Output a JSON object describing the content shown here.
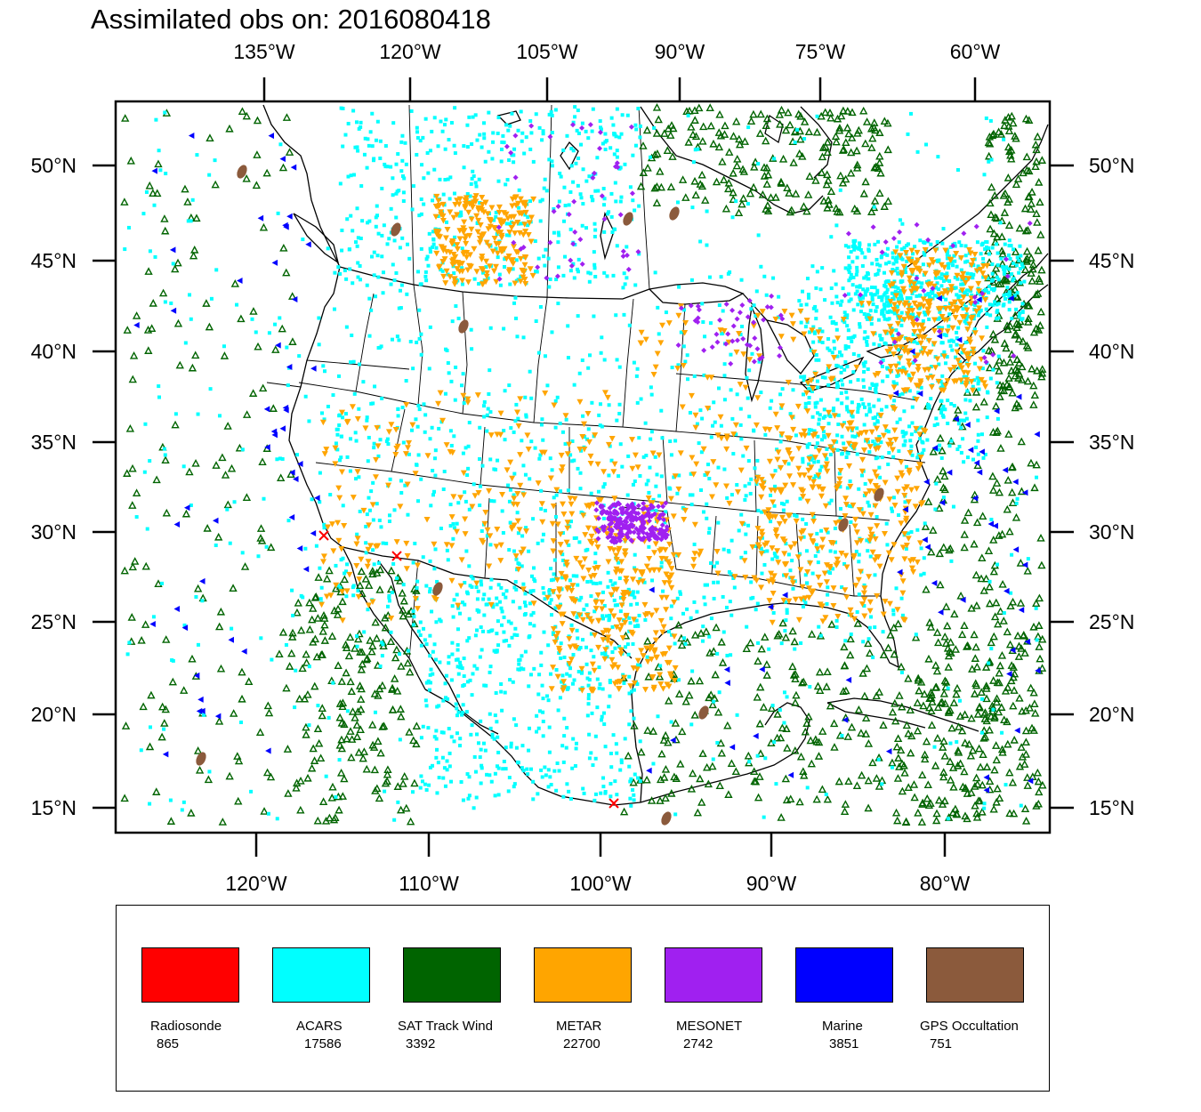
{
  "title": "Assimilated obs on: 2016080418",
  "map": {
    "top_lon_labels": [
      "135°W",
      "120°W",
      "105°W",
      "90°W",
      "75°W",
      "60°W"
    ],
    "bottom_lon_labels": [
      "120°W",
      "110°W",
      "100°W",
      "90°W",
      "80°W"
    ],
    "lat_labels": [
      "50°N",
      "45°N",
      "40°N",
      "35°N",
      "30°N",
      "25°N",
      "20°N",
      "15°N"
    ]
  },
  "legend": [
    {
      "name": "Radiosonde",
      "count": "865",
      "color": "#ff0000",
      "marker": "x"
    },
    {
      "name": "ACARS",
      "count": "17586",
      "color": "#00ffff",
      "marker": "square"
    },
    {
      "name": "SAT Track Wind",
      "count": "3392",
      "color": "#006400",
      "marker": "triangle-up"
    },
    {
      "name": "METAR",
      "count": "22700",
      "color": "#ffa500",
      "marker": "triangle-down"
    },
    {
      "name": "MESONET",
      "count": "2742",
      "color": "#a020f0",
      "marker": "diamond"
    },
    {
      "name": "Marine",
      "count": "3851",
      "color": "#0000ff",
      "marker": "triangle-left"
    },
    {
      "name": "GPS Occultation",
      "count": "751",
      "color": "#8b5a3c",
      "marker": "blob"
    }
  ]
}
